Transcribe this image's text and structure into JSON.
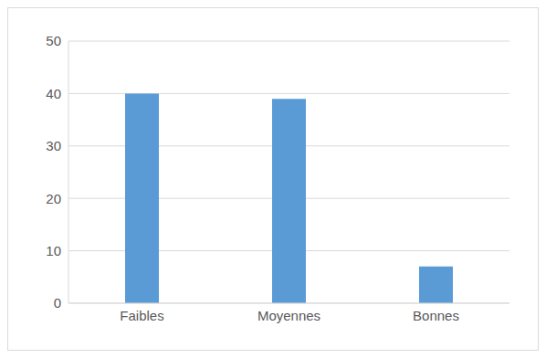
{
  "chart_data": {
    "type": "bar",
    "categories": [
      "Faibles",
      "Moyennes",
      "Bonnes"
    ],
    "values": [
      40,
      39,
      7
    ],
    "color": "#5b9bd5",
    "ylim": [
      0,
      50
    ],
    "yticks": [
      0,
      10,
      20,
      30,
      40,
      50
    ],
    "grid": true
  }
}
